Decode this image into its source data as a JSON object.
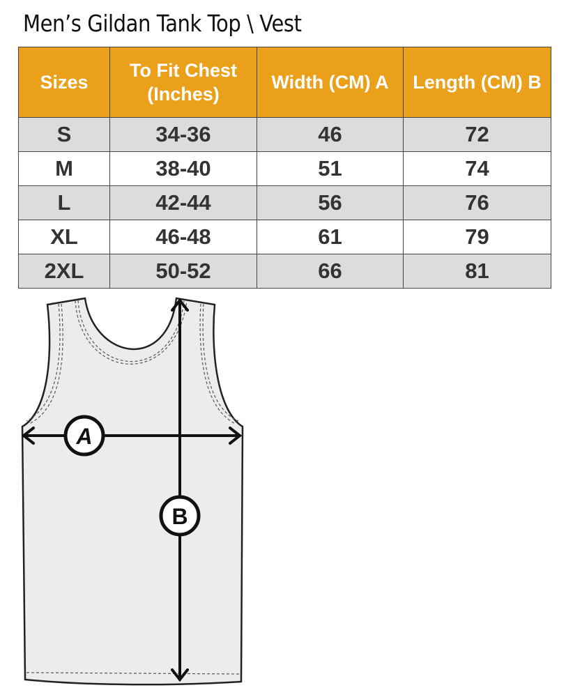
{
  "title": "Men’s Gildan Tank Top \\ Vest",
  "table": {
    "headers": [
      "Sizes",
      "To Fit Chest (Inches)",
      "Width (CM) A",
      "Length  (CM) B"
    ],
    "rows": [
      [
        "S",
        "34-36",
        "46",
        "72"
      ],
      [
        "M",
        "38-40",
        "51",
        "74"
      ],
      [
        "L",
        "42-44",
        "56",
        "76"
      ],
      [
        "XL",
        "46-48",
        "61",
        "79"
      ],
      [
        "2XL",
        "50-52",
        "66",
        "81"
      ]
    ]
  },
  "diagram": {
    "label_a": "A",
    "label_b": "B"
  },
  "colors": {
    "header": "#eaa01b",
    "row_alt": "#dcdcdc",
    "garment": "#ececec"
  }
}
